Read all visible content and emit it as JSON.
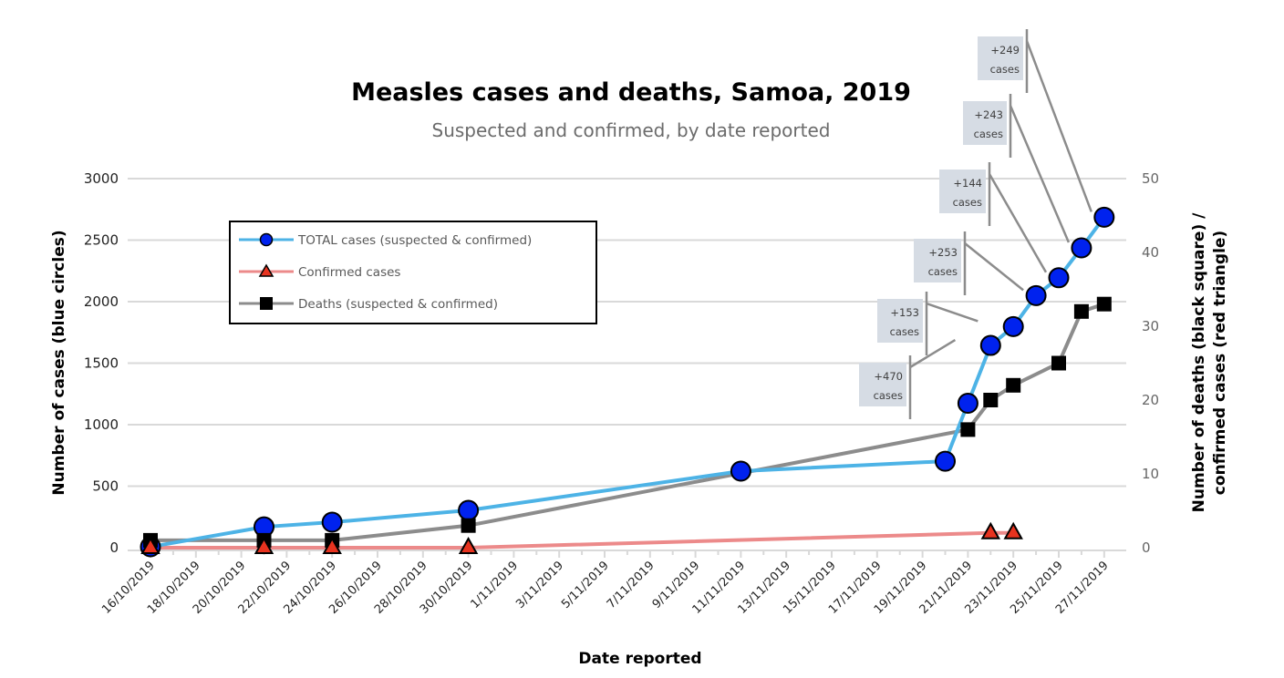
{
  "chart_data": {
    "type": "line",
    "title": "Measles cases and deaths, Samoa, 2019",
    "subtitle": "Suspected and confirmed, by date reported",
    "xlabel": "Date reported",
    "ylabel": "Number of cases (blue circles)",
    "y2label_line1": "Number of deaths (black square) /",
    "y2label_line2": "confirmed cases (red triangle)",
    "ylim": [
      0,
      3000
    ],
    "y2lim": [
      0,
      50
    ],
    "yticks": [
      "0",
      "500",
      "1000",
      "1500",
      "2000",
      "2500",
      "3000"
    ],
    "y2ticks": [
      "0",
      "10",
      "20",
      "30",
      "40",
      "50"
    ],
    "xrange": [
      "2019-10-16",
      "2019-11-28"
    ],
    "xticks": [
      "16/10/2019",
      "18/10/2019",
      "20/10/2019",
      "22/10/2019",
      "24/10/2019",
      "26/10/2019",
      "28/10/2019",
      "30/10/2019",
      "1/11/2019",
      "3/11/2019",
      "5/11/2019",
      "7/11/2019",
      "9/11/2019",
      "11/11/2019",
      "13/11/2019",
      "15/11/2019",
      "17/11/2019",
      "19/11/2019",
      "21/11/2019",
      "23/11/2019",
      "25/11/2019",
      "27/11/2019"
    ],
    "grid": true,
    "legend_position": "upper-left",
    "series": [
      {
        "name": "TOTAL cases (suspected & confirmed)",
        "axis": "left",
        "color": "#4db3e6",
        "marker": "circle",
        "marker_color": "#0022ee",
        "points": [
          {
            "x": "2019-10-16",
            "y": 7
          },
          {
            "x": "2019-10-21",
            "y": 169
          },
          {
            "x": "2019-10-24",
            "y": 207
          },
          {
            "x": "2019-10-30",
            "y": 304
          },
          {
            "x": "2019-11-11",
            "y": 622
          },
          {
            "x": "2019-11-20",
            "y": 703
          },
          {
            "x": "2019-11-21",
            "y": 1174
          },
          {
            "x": "2019-11-22",
            "y": 1644
          },
          {
            "x": "2019-11-23",
            "y": 1797
          },
          {
            "x": "2019-11-24",
            "y": 2049
          },
          {
            "x": "2019-11-25",
            "y": 2194
          },
          {
            "x": "2019-11-26",
            "y": 2437
          },
          {
            "x": "2019-11-27",
            "y": 2686
          }
        ]
      },
      {
        "name": "Confirmed cases",
        "axis": "right",
        "color": "#ec8a8a",
        "marker": "triangle",
        "marker_color": "#e8331f",
        "points": [
          {
            "x": "2019-10-16",
            "y": 0
          },
          {
            "x": "2019-10-21",
            "y": 0
          },
          {
            "x": "2019-10-24",
            "y": 0
          },
          {
            "x": "2019-10-30",
            "y": 0
          },
          {
            "x": "2019-11-22",
            "y": 2
          },
          {
            "x": "2019-11-23",
            "y": 2
          }
        ]
      },
      {
        "name": "Deaths (suspected & confirmed)",
        "axis": "right",
        "color": "#8c8c8c",
        "marker": "square",
        "marker_color": "#000000",
        "points": [
          {
            "x": "2019-10-16",
            "y": 1
          },
          {
            "x": "2019-10-21",
            "y": 1
          },
          {
            "x": "2019-10-24",
            "y": 1
          },
          {
            "x": "2019-10-30",
            "y": 3
          },
          {
            "x": "2019-11-21",
            "y": 16
          },
          {
            "x": "2019-11-22",
            "y": 20
          },
          {
            "x": "2019-11-23",
            "y": 22
          },
          {
            "x": "2019-11-25",
            "y": 25
          },
          {
            "x": "2019-11-26",
            "y": 32
          },
          {
            "x": "2019-11-27",
            "y": 33
          }
        ]
      }
    ],
    "annotations": [
      {
        "line1": "+470",
        "line2": "cases",
        "target_x": "2019-11-21",
        "target_y": 1644
      },
      {
        "line1": "+153",
        "line2": "cases",
        "target_x": "2019-11-22",
        "target_y": 1797
      },
      {
        "line1": "+253",
        "line2": "cases",
        "target_x": "2019-11-24",
        "target_y": 2049
      },
      {
        "line1": "+144",
        "line2": "cases",
        "target_x": "2019-11-25",
        "target_y": 2194
      },
      {
        "line1": "+243",
        "line2": "cases",
        "target_x": "2019-11-26",
        "target_y": 2437
      },
      {
        "line1": "+249",
        "line2": "cases",
        "target_x": "2019-11-27",
        "target_y": 2686
      }
    ]
  }
}
